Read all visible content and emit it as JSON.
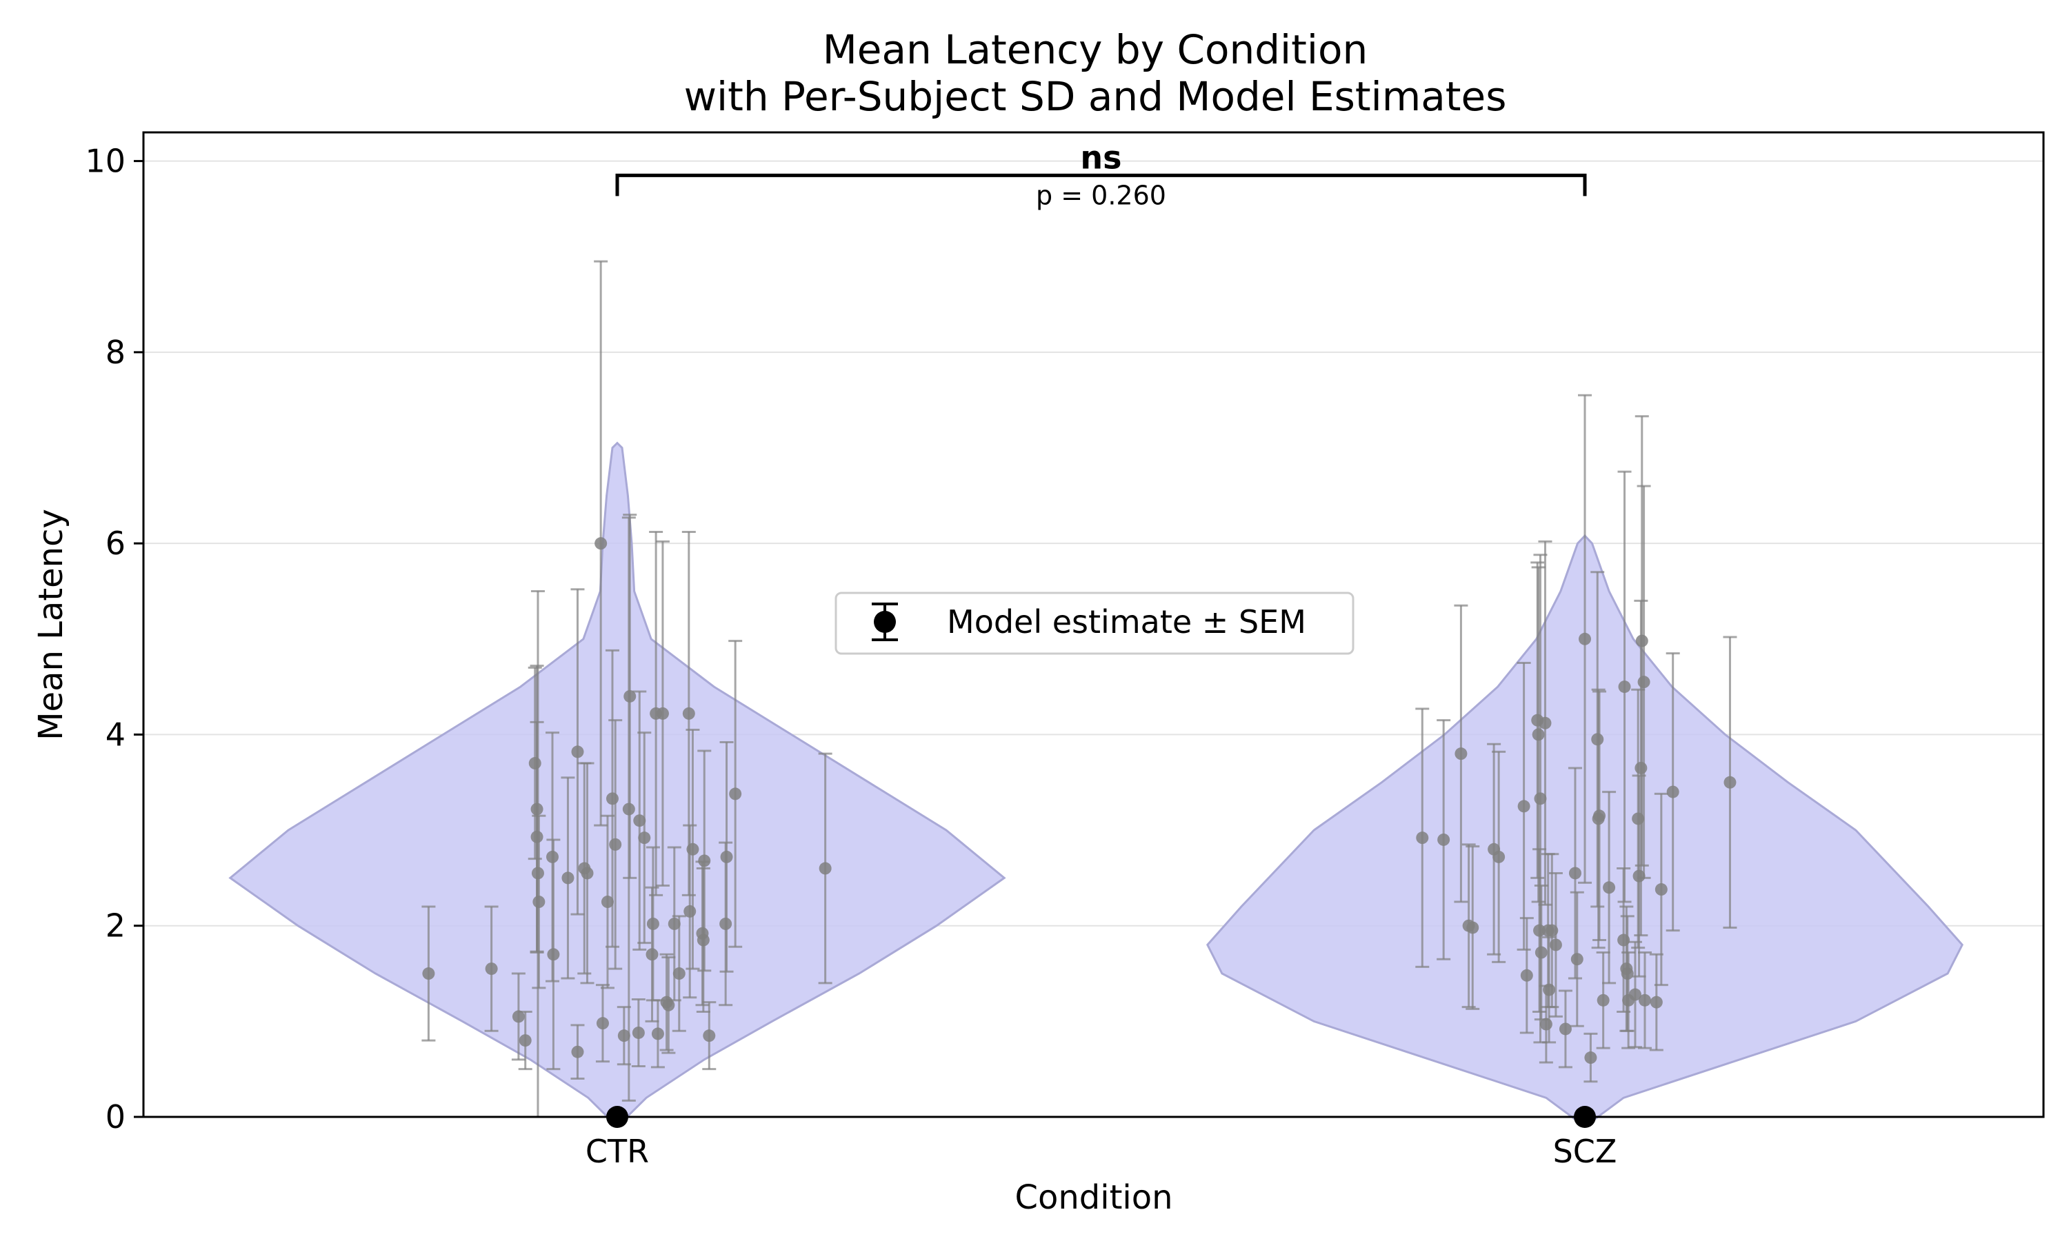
{
  "chart_data": {
    "type": "violin",
    "title_line1": "Mean Latency by Condition",
    "title_line2": "with Per-Subject SD and Model Estimates",
    "xlabel": "Condition",
    "ylabel": "Mean Latency",
    "categories": [
      "CTR",
      "SCZ"
    ],
    "ylim": [
      0,
      10.3
    ],
    "yticks": [
      0,
      2,
      4,
      6,
      8,
      10
    ],
    "grid": "horizontal",
    "violin_color": "#c8c8f5",
    "point_color": "#808080",
    "legend": {
      "label": "Model estimate ± SEM",
      "placement": "center"
    },
    "significance": {
      "label": "ns",
      "p_text": "p = 0.260",
      "between": [
        "CTR",
        "SCZ"
      ],
      "y": 9.85
    },
    "model_estimates": [
      {
        "category": "CTR",
        "value": 0.0,
        "sem": 0.0
      },
      {
        "category": "SCZ",
        "value": 0.0,
        "sem": 0.0
      }
    ],
    "violins": [
      {
        "category": "CTR",
        "profile": [
          [
            -0.1,
            0.0
          ],
          [
            0.2,
            0.06
          ],
          [
            0.6,
            0.18
          ],
          [
            1.0,
            0.32
          ],
          [
            1.5,
            0.5
          ],
          [
            2.0,
            0.66
          ],
          [
            2.5,
            0.8
          ],
          [
            3.0,
            0.68
          ],
          [
            3.5,
            0.52
          ],
          [
            4.0,
            0.36
          ],
          [
            4.5,
            0.2
          ],
          [
            5.0,
            0.07
          ],
          [
            5.5,
            0.035
          ],
          [
            6.0,
            0.03
          ],
          [
            6.5,
            0.022
          ],
          [
            7.0,
            0.01
          ],
          [
            7.05,
            0.0
          ]
        ]
      },
      {
        "category": "SCZ",
        "profile": [
          [
            -0.1,
            0.0
          ],
          [
            0.2,
            0.08
          ],
          [
            0.6,
            0.32
          ],
          [
            1.0,
            0.56
          ],
          [
            1.5,
            0.75
          ],
          [
            1.8,
            0.78
          ],
          [
            2.2,
            0.71
          ],
          [
            3.0,
            0.56
          ],
          [
            3.5,
            0.42
          ],
          [
            4.0,
            0.29
          ],
          [
            4.5,
            0.18
          ],
          [
            5.0,
            0.1
          ],
          [
            5.5,
            0.05
          ],
          [
            6.0,
            0.015
          ],
          [
            6.08,
            0.0
          ]
        ]
      }
    ],
    "subjects": [
      {
        "category": "CTR",
        "x": -0.195,
        "mean": 1.5,
        "sd": 0.7
      },
      {
        "category": "CTR",
        "x": -0.13,
        "mean": 1.55,
        "sd": 0.65
      },
      {
        "category": "CTR",
        "x": -0.102,
        "mean": 1.05,
        "sd": 0.45
      },
      {
        "category": "CTR",
        "x": -0.095,
        "mean": 0.8,
        "sd": 0.3
      },
      {
        "category": "CTR",
        "x": -0.085,
        "mean": 3.7,
        "sd": 1.0
      },
      {
        "category": "CTR",
        "x": -0.083,
        "mean": 3.22,
        "sd": 1.5
      },
      {
        "category": "CTR",
        "x": -0.083,
        "mean": 2.93,
        "sd": 1.2
      },
      {
        "category": "CTR",
        "x": -0.082,
        "mean": 2.55,
        "sd": 2.95
      },
      {
        "category": "CTR",
        "x": -0.081,
        "mean": 2.25,
        "sd": 0.9
      },
      {
        "category": "CTR",
        "x": -0.067,
        "mean": 2.72,
        "sd": 1.3
      },
      {
        "category": "CTR",
        "x": -0.066,
        "mean": 1.7,
        "sd": 1.2
      },
      {
        "category": "CTR",
        "x": -0.051,
        "mean": 2.5,
        "sd": 1.05
      },
      {
        "category": "CTR",
        "x": -0.041,
        "mean": 3.82,
        "sd": 1.7
      },
      {
        "category": "CTR",
        "x": -0.041,
        "mean": 0.68,
        "sd": 0.28
      },
      {
        "category": "CTR",
        "x": -0.034,
        "mean": 2.6,
        "sd": 1.1
      },
      {
        "category": "CTR",
        "x": -0.031,
        "mean": 2.55,
        "sd": 1.15
      },
      {
        "category": "CTR",
        "x": -0.017,
        "mean": 6.0,
        "sd": 2.95
      },
      {
        "category": "CTR",
        "x": -0.015,
        "mean": 0.98,
        "sd": 0.4
      },
      {
        "category": "CTR",
        "x": -0.01,
        "mean": 2.25,
        "sd": 0.9
      },
      {
        "category": "CTR",
        "x": -0.005,
        "mean": 3.33,
        "sd": 1.55
      },
      {
        "category": "CTR",
        "x": -0.002,
        "mean": 2.85,
        "sd": 1.3
      },
      {
        "category": "CTR",
        "x": 0.007,
        "mean": 0.85,
        "sd": 0.3
      },
      {
        "category": "CTR",
        "x": 0.012,
        "mean": 3.22,
        "sd": 3.05
      },
      {
        "category": "CTR",
        "x": 0.013,
        "mean": 4.4,
        "sd": 1.9
      },
      {
        "category": "CTR",
        "x": 0.022,
        "mean": 0.88,
        "sd": 0.35
      },
      {
        "category": "CTR",
        "x": 0.023,
        "mean": 3.1,
        "sd": 1.35
      },
      {
        "category": "CTR",
        "x": 0.028,
        "mean": 2.92,
        "sd": 1.1
      },
      {
        "category": "CTR",
        "x": 0.036,
        "mean": 1.7,
        "sd": 0.7
      },
      {
        "category": "CTR",
        "x": 0.037,
        "mean": 2.02,
        "sd": 0.8
      },
      {
        "category": "CTR",
        "x": 0.04,
        "mean": 4.22,
        "sd": 1.9
      },
      {
        "category": "CTR",
        "x": 0.042,
        "mean": 0.87,
        "sd": 0.35
      },
      {
        "category": "CTR",
        "x": 0.047,
        "mean": 4.22,
        "sd": 1.8
      },
      {
        "category": "CTR",
        "x": 0.051,
        "mean": 1.2,
        "sd": 0.5
      },
      {
        "category": "CTR",
        "x": 0.053,
        "mean": 1.17,
        "sd": 0.5
      },
      {
        "category": "CTR",
        "x": 0.059,
        "mean": 2.02,
        "sd": 0.8
      },
      {
        "category": "CTR",
        "x": 0.064,
        "mean": 1.5,
        "sd": 0.6
      },
      {
        "category": "CTR",
        "x": 0.074,
        "mean": 4.22,
        "sd": 1.9
      },
      {
        "category": "CTR",
        "x": 0.075,
        "mean": 2.15,
        "sd": 0.9
      },
      {
        "category": "CTR",
        "x": 0.078,
        "mean": 2.8,
        "sd": 1.25
      },
      {
        "category": "CTR",
        "x": 0.088,
        "mean": 1.92,
        "sd": 0.75
      },
      {
        "category": "CTR",
        "x": 0.089,
        "mean": 1.85,
        "sd": 0.75
      },
      {
        "category": "CTR",
        "x": 0.09,
        "mean": 2.68,
        "sd": 1.15
      },
      {
        "category": "CTR",
        "x": 0.095,
        "mean": 0.85,
        "sd": 0.35
      },
      {
        "category": "CTR",
        "x": 0.112,
        "mean": 2.02,
        "sd": 0.85
      },
      {
        "category": "CTR",
        "x": 0.113,
        "mean": 2.72,
        "sd": 1.2
      },
      {
        "category": "CTR",
        "x": 0.122,
        "mean": 3.38,
        "sd": 1.6
      },
      {
        "category": "CTR",
        "x": 0.215,
        "mean": 2.6,
        "sd": 1.2
      },
      {
        "category": "SCZ",
        "x": -0.168,
        "mean": 2.92,
        "sd": 1.35
      },
      {
        "category": "SCZ",
        "x": -0.146,
        "mean": 2.9,
        "sd": 1.25
      },
      {
        "category": "SCZ",
        "x": -0.128,
        "mean": 3.8,
        "sd": 1.55
      },
      {
        "category": "SCZ",
        "x": -0.12,
        "mean": 2.0,
        "sd": 0.85
      },
      {
        "category": "SCZ",
        "x": -0.116,
        "mean": 1.98,
        "sd": 0.85
      },
      {
        "category": "SCZ",
        "x": -0.094,
        "mean": 2.8,
        "sd": 1.1
      },
      {
        "category": "SCZ",
        "x": -0.089,
        "mean": 2.72,
        "sd": 1.1
      },
      {
        "category": "SCZ",
        "x": -0.063,
        "mean": 3.25,
        "sd": 1.5
      },
      {
        "category": "SCZ",
        "x": -0.06,
        "mean": 1.48,
        "sd": 0.6
      },
      {
        "category": "SCZ",
        "x": -0.049,
        "mean": 4.15,
        "sd": 1.65
      },
      {
        "category": "SCZ",
        "x": -0.048,
        "mean": 4.0,
        "sd": 1.75
      },
      {
        "category": "SCZ",
        "x": -0.047,
        "mean": 1.95,
        "sd": 0.85
      },
      {
        "category": "SCZ",
        "x": -0.046,
        "mean": 3.33,
        "sd": 2.55
      },
      {
        "category": "SCZ",
        "x": -0.045,
        "mean": 1.72,
        "sd": 0.7
      },
      {
        "category": "SCZ",
        "x": -0.041,
        "mean": 4.12,
        "sd": 1.9
      },
      {
        "category": "SCZ",
        "x": -0.04,
        "mean": 0.97,
        "sd": 0.4
      },
      {
        "category": "SCZ",
        "x": -0.038,
        "mean": 1.95,
        "sd": 0.8
      },
      {
        "category": "SCZ",
        "x": -0.037,
        "mean": 1.33,
        "sd": 0.55
      },
      {
        "category": "SCZ",
        "x": -0.034,
        "mean": 1.95,
        "sd": 0.8
      },
      {
        "category": "SCZ",
        "x": -0.03,
        "mean": 1.8,
        "sd": 0.75
      },
      {
        "category": "SCZ",
        "x": -0.02,
        "mean": 0.92,
        "sd": 0.4
      },
      {
        "category": "SCZ",
        "x": -0.01,
        "mean": 2.55,
        "sd": 1.1
      },
      {
        "category": "SCZ",
        "x": -0.008,
        "mean": 1.65,
        "sd": 0.7
      },
      {
        "category": "SCZ",
        "x": 0.0,
        "mean": 5.0,
        "sd": 2.55
      },
      {
        "category": "SCZ",
        "x": 0.006,
        "mean": 0.62,
        "sd": 0.25
      },
      {
        "category": "SCZ",
        "x": 0.013,
        "mean": 3.95,
        "sd": 1.75
      },
      {
        "category": "SCZ",
        "x": 0.014,
        "mean": 3.12,
        "sd": 1.35
      },
      {
        "category": "SCZ",
        "x": 0.015,
        "mean": 3.15,
        "sd": 1.3
      },
      {
        "category": "SCZ",
        "x": 0.019,
        "mean": 1.22,
        "sd": 0.5
      },
      {
        "category": "SCZ",
        "x": 0.025,
        "mean": 2.4,
        "sd": 1.0
      },
      {
        "category": "SCZ",
        "x": 0.04,
        "mean": 1.85,
        "sd": 0.75
      },
      {
        "category": "SCZ",
        "x": 0.041,
        "mean": 4.5,
        "sd": 2.25
      },
      {
        "category": "SCZ",
        "x": 0.043,
        "mean": 1.55,
        "sd": 0.65
      },
      {
        "category": "SCZ",
        "x": 0.044,
        "mean": 1.5,
        "sd": 0.6
      },
      {
        "category": "SCZ",
        "x": 0.045,
        "mean": 1.22,
        "sd": 0.5
      },
      {
        "category": "SCZ",
        "x": 0.052,
        "mean": 1.28,
        "sd": 0.55
      },
      {
        "category": "SCZ",
        "x": 0.055,
        "mean": 3.12,
        "sd": 1.35
      },
      {
        "category": "SCZ",
        "x": 0.056,
        "mean": 2.52,
        "sd": 1.05
      },
      {
        "category": "SCZ",
        "x": 0.058,
        "mean": 3.65,
        "sd": 1.75
      },
      {
        "category": "SCZ",
        "x": 0.059,
        "mean": 4.98,
        "sd": 2.35
      },
      {
        "category": "SCZ",
        "x": 0.061,
        "mean": 4.55,
        "sd": 2.05
      },
      {
        "category": "SCZ",
        "x": 0.062,
        "mean": 1.22,
        "sd": 0.5
      },
      {
        "category": "SCZ",
        "x": 0.074,
        "mean": 1.2,
        "sd": 0.5
      },
      {
        "category": "SCZ",
        "x": 0.079,
        "mean": 2.38,
        "sd": 1.0
      },
      {
        "category": "SCZ",
        "x": 0.091,
        "mean": 3.4,
        "sd": 1.45
      },
      {
        "category": "SCZ",
        "x": 0.15,
        "mean": 3.5,
        "sd": 1.52
      }
    ]
  }
}
